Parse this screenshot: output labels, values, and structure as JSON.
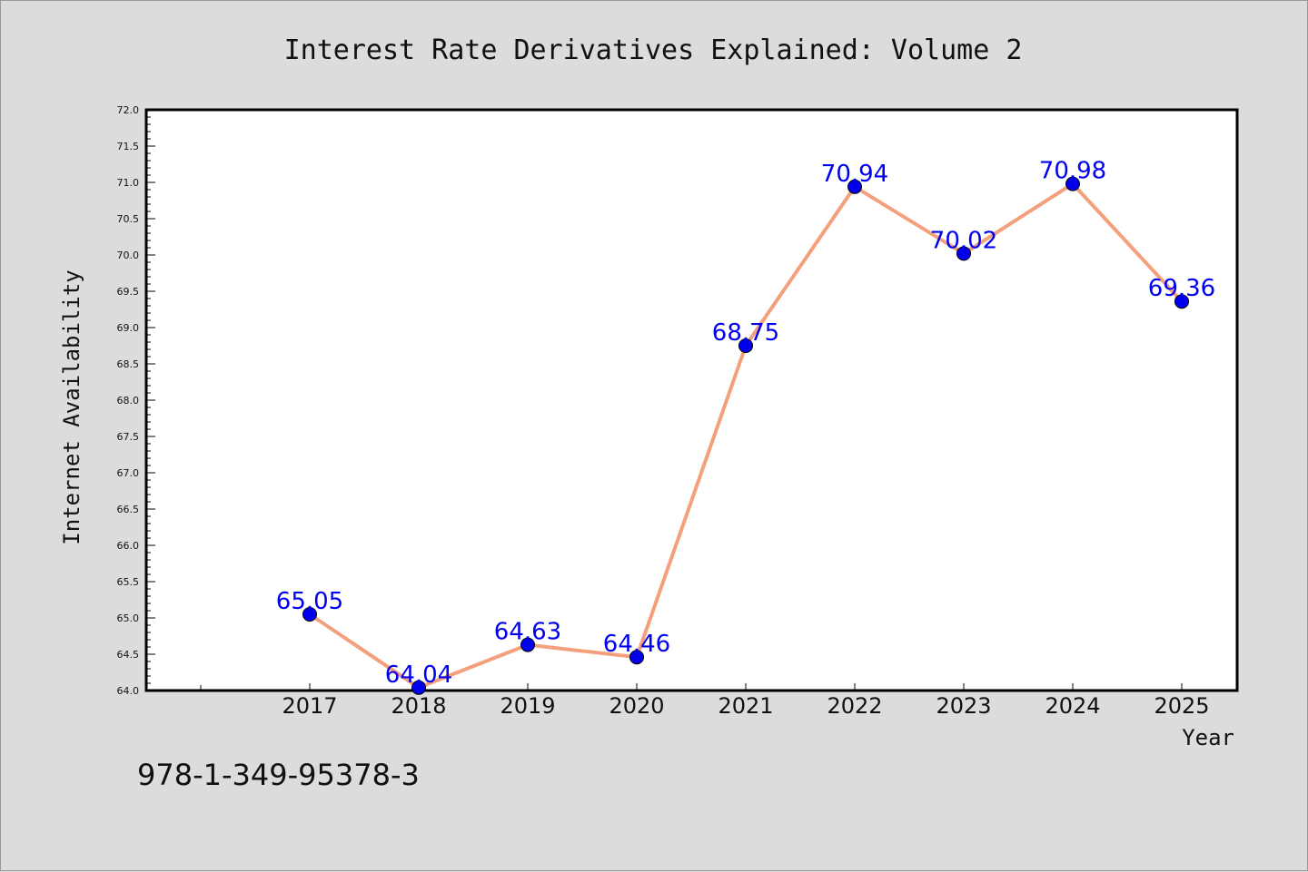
{
  "chart_data": {
    "type": "line",
    "title": "Interest Rate Derivatives Explained: Volume 2",
    "xlabel": "Year",
    "ylabel": "Internet Availability",
    "x": [
      "2017",
      "2018",
      "2019",
      "2020",
      "2021",
      "2022",
      "2023",
      "2024",
      "2025"
    ],
    "series": [
      {
        "values": [
          65.05,
          64.04,
          64.63,
          64.46,
          68.75,
          70.94,
          70.02,
          70.98,
          69.36
        ],
        "data_labels": [
          "65.05",
          "64.04",
          "64.63",
          "64.46",
          "68.75",
          "70.94",
          "70.02",
          "70.98",
          "69.36"
        ]
      }
    ],
    "ylim": [
      64.0,
      72.0
    ],
    "yticks": [
      "64.0",
      "64.5",
      "65.0",
      "65.5",
      "66.0",
      "66.5",
      "67.0",
      "67.5",
      "68.0",
      "68.5",
      "69.0",
      "69.5",
      "70.0",
      "70.5",
      "71.0",
      "71.5",
      "72.0"
    ],
    "grid": false,
    "colors": {
      "line": "#f4a07c",
      "marker": "#0000ee",
      "data_label": "#0000ee",
      "background": "#dcdcdc",
      "plot_background": "#ffffff"
    }
  },
  "footer": {
    "isbn": "978-1-349-95378-3"
  }
}
